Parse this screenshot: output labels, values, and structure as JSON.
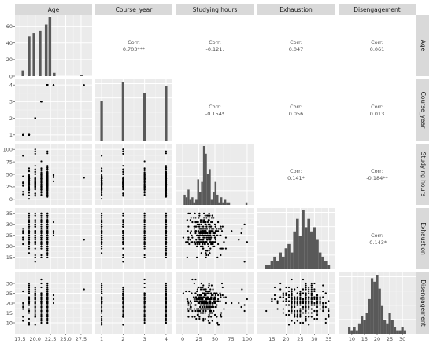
{
  "chart_data": {
    "type": "pairs",
    "variables": [
      "Age",
      "Course_year",
      "Studying hours",
      "Exhaustion",
      "Disengagement"
    ],
    "correlations": [
      {
        "row": 0,
        "col": 1,
        "label": "Corr:",
        "value": "0.703***"
      },
      {
        "row": 0,
        "col": 2,
        "label": "Corr:",
        "value": "-0.121."
      },
      {
        "row": 0,
        "col": 3,
        "label": "Corr:",
        "value": "0.047"
      },
      {
        "row": 0,
        "col": 4,
        "label": "Corr:",
        "value": "0.061"
      },
      {
        "row": 1,
        "col": 2,
        "label": "Corr:",
        "value": "-0.154*"
      },
      {
        "row": 1,
        "col": 3,
        "label": "Corr:",
        "value": "0.056"
      },
      {
        "row": 1,
        "col": 4,
        "label": "Corr:",
        "value": "0.013"
      },
      {
        "row": 2,
        "col": 3,
        "label": "Corr:",
        "value": "0.141*"
      },
      {
        "row": 2,
        "col": 4,
        "label": "Corr:",
        "value": "-0.184**"
      },
      {
        "row": 3,
        "col": 4,
        "label": "Corr:",
        "value": "-0.143*"
      }
    ],
    "x_axes": [
      {
        "variable": "Age",
        "range": [
          17.2,
          28.8
        ],
        "ticks": [
          17.5,
          20.0,
          22.5,
          25.0,
          27.5
        ],
        "tick_labels": [
          "17.5",
          "20.0",
          "22.5",
          "25.0",
          "27.5"
        ]
      },
      {
        "variable": "Course_year",
        "range": [
          0.85,
          4.15
        ],
        "ticks": [
          1,
          2,
          3,
          4
        ],
        "tick_labels": [
          "1",
          "2",
          "3",
          "4"
        ]
      },
      {
        "variable": "Studying hours",
        "range": [
          -5,
          105
        ],
        "ticks": [
          0,
          25,
          50,
          75,
          100
        ],
        "tick_labels": [
          "0",
          "25",
          "50",
          "75",
          "100"
        ]
      },
      {
        "variable": "Exhaustion",
        "range": [
          11,
          36
        ],
        "ticks": [
          15,
          20,
          25,
          30,
          35
        ],
        "tick_labels": [
          "15",
          "20",
          "25",
          "30",
          "35"
        ]
      },
      {
        "variable": "Disengagement",
        "range": [
          6,
          34
        ],
        "ticks": [
          10,
          15,
          20,
          25,
          30
        ],
        "tick_labels": [
          "10",
          "15",
          "20",
          "25",
          "30"
        ]
      }
    ],
    "y_axes": [
      {
        "variable": "Age",
        "range": [
          0,
          72
        ],
        "ticks": [
          0,
          20,
          40,
          60
        ],
        "tick_labels": [
          "0",
          "20",
          "40",
          "60"
        ]
      },
      {
        "variable": "Course_year",
        "range": [
          0.85,
          4.15
        ],
        "ticks": [
          1,
          2,
          3,
          4
        ],
        "tick_labels": [
          "1",
          "2",
          "3",
          "4"
        ]
      },
      {
        "variable": "Studying hours",
        "range": [
          -5,
          105
        ],
        "ticks": [
          0,
          25,
          50,
          75,
          100
        ],
        "tick_labels": [
          "0",
          "25",
          "50",
          "75",
          "100"
        ]
      },
      {
        "variable": "Exhaustion",
        "range": [
          11,
          36
        ],
        "ticks": [
          15,
          20,
          25,
          30,
          35
        ],
        "tick_labels": [
          "15",
          "20",
          "25",
          "30",
          "35"
        ]
      },
      {
        "variable": "Disengagement",
        "range": [
          6,
          34
        ],
        "ticks": [
          10,
          15,
          20,
          25,
          30
        ],
        "tick_labels": [
          "10",
          "15",
          "20",
          "25",
          "30"
        ]
      }
    ],
    "histograms": {
      "Age": {
        "bin_width": 0.45,
        "bins": [
          [
            18.0,
            7
          ],
          [
            19.0,
            48
          ],
          [
            19.8,
            52
          ],
          [
            20.8,
            55
          ],
          [
            21.8,
            62
          ],
          [
            22.4,
            71
          ],
          [
            23.1,
            4
          ],
          [
            27.6,
            1
          ]
        ]
      },
      "Course_year": {
        "bin_width": 0.12,
        "bins": [
          [
            1,
            17
          ],
          [
            2,
            25
          ],
          [
            3,
            20
          ],
          [
            4,
            23
          ]
        ]
      },
      "Studying hours": {
        "bin_width": 3.0,
        "bins": [
          [
            3,
            4
          ],
          [
            6,
            3
          ],
          [
            9,
            6
          ],
          [
            12,
            2
          ],
          [
            15,
            3
          ],
          [
            18,
            1
          ],
          [
            21,
            2
          ],
          [
            24,
            10
          ],
          [
            27,
            5
          ],
          [
            30,
            9
          ],
          [
            33,
            23
          ],
          [
            36,
            20
          ],
          [
            39,
            12
          ],
          [
            42,
            14
          ],
          [
            45,
            2
          ],
          [
            48,
            5
          ],
          [
            51,
            9
          ],
          [
            54,
            4
          ],
          [
            57,
            1
          ],
          [
            60,
            3
          ],
          [
            63,
            1
          ],
          [
            66,
            2
          ],
          [
            69,
            1
          ],
          [
            72,
            1
          ],
          [
            99,
            1
          ]
        ]
      },
      "Exhaustion": {
        "bin_width": 1.0,
        "bins": [
          [
            13,
            1
          ],
          [
            14,
            1
          ],
          [
            15,
            2
          ],
          [
            16,
            3
          ],
          [
            17,
            2
          ],
          [
            18,
            4
          ],
          [
            19,
            3
          ],
          [
            20,
            5
          ],
          [
            21,
            6
          ],
          [
            22,
            4
          ],
          [
            23,
            9
          ],
          [
            24,
            12
          ],
          [
            25,
            8
          ],
          [
            26,
            14
          ],
          [
            27,
            10
          ],
          [
            28,
            12
          ],
          [
            29,
            9
          ],
          [
            30,
            10
          ],
          [
            31,
            7
          ],
          [
            32,
            4
          ],
          [
            33,
            3
          ],
          [
            34,
            2
          ],
          [
            35,
            1
          ]
        ]
      },
      "Disengagement": {
        "bin_width": 1.0,
        "bins": [
          [
            9,
            2
          ],
          [
            10,
            1
          ],
          [
            11,
            2
          ],
          [
            12,
            1
          ],
          [
            13,
            3
          ],
          [
            14,
            5
          ],
          [
            15,
            4
          ],
          [
            16,
            6
          ],
          [
            17,
            10
          ],
          [
            18,
            16
          ],
          [
            19,
            15
          ],
          [
            20,
            17
          ],
          [
            21,
            13
          ],
          [
            22,
            8
          ],
          [
            23,
            4
          ],
          [
            24,
            3
          ],
          [
            25,
            6
          ],
          [
            26,
            4
          ],
          [
            27,
            2
          ],
          [
            28,
            1
          ],
          [
            29,
            1
          ],
          [
            30,
            2
          ],
          [
            31,
            1
          ]
        ]
      }
    },
    "scatter_seed": 7,
    "grid": true,
    "panel_background": "#ebebeb",
    "strip_background": "#d9d9d9",
    "bar_color": "#595959",
    "point_color": "#000000"
  }
}
